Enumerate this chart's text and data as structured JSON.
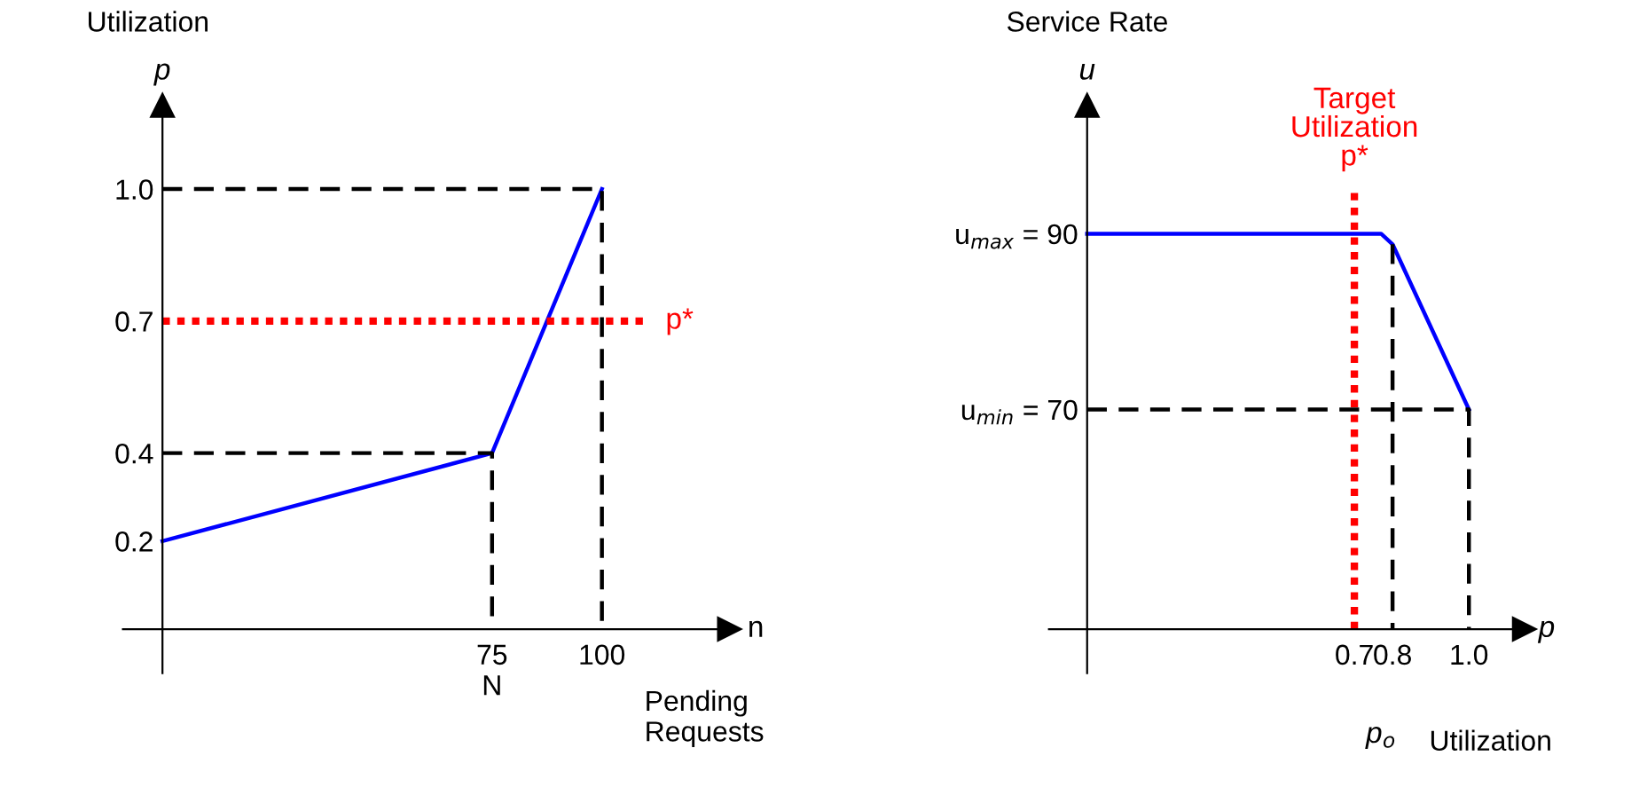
{
  "chart_data": [
    {
      "type": "line",
      "ylabel": "Utilization",
      "xlabel": "Pending\nRequests",
      "xlim": [
        -9,
        129
      ],
      "ylim": [
        -0.1,
        1.19
      ],
      "xticks": [
        {
          "value": 75,
          "label": "75\nN"
        },
        100
      ],
      "yticks": [
        0.2,
        0.4,
        0.7,
        {
          "value": 1.0,
          "label": "1.0"
        }
      ],
      "grid": false,
      "marker": "none",
      "line_style": "solid",
      "series": [
        {
          "color": "#0000ff",
          "x": [
            0,
            75,
            100
          ],
          "values": [
            0.2,
            0.4,
            1.0
          ]
        },
        {
          "color": "#000000",
          "line_style": "dashed",
          "x": [
            0,
            100,
            100
          ],
          "values": [
            1.0,
            1.0,
            0
          ]
        },
        {
          "color": "#000000",
          "line_style": "dashed",
          "x": [
            0,
            75,
            75
          ],
          "values": [
            0.4,
            0.4,
            0
          ]
        },
        {
          "color": "#ff0000",
          "line_style": "dotted",
          "x": [
            0,
            110
          ],
          "values": [
            0.7,
            0.7
          ]
        }
      ],
      "annotations": [
        "p",
        "n",
        {
          "text": "p*",
          "x": 110,
          "y": 0.7
        }
      ]
    },
    {
      "type": "line",
      "ylabel": "Service Rate",
      "xlabel": "Utilization",
      "xlim": [
        -0.1,
        1.145
      ],
      "ylim": [
        40,
        104.6
      ],
      "xticks": [
        0.7,
        0.8,
        {
          "value": 1.0,
          "label": "1.0"
        }
      ],
      "yticks": [
        {
          "value": 70,
          "label": "u$_{min}$ = 70"
        },
        {
          "value": 90,
          "label": "u$_{max}$ = 90"
        }
      ],
      "grid": false,
      "marker": "none",
      "line_style": "solid",
      "series": [
        {
          "color": "#0000ff",
          "x": [
            0,
            0.77,
            0.8,
            1.0
          ],
          "values": [
            90,
            90,
            88.8,
            70
          ]
        },
        {
          "color": "#000000",
          "line_style": "dashed",
          "x": [
            0.8,
            0.8
          ],
          "values": [
            88.8,
            45
          ]
        },
        {
          "color": "#000000",
          "line_style": "dashed",
          "x": [
            0,
            1.0,
            1.0
          ],
          "values": [
            70,
            70,
            45
          ]
        },
        {
          "color": "#ff0000",
          "line_style": "dotted",
          "x": [
            0.7,
            0.7
          ],
          "values": [
            45,
            95.4
          ]
        }
      ],
      "annotations": [
        "u",
        "p",
        {
          "text": "Target\nUtilization\np*",
          "x": 0.7,
          "y": 95.4
        },
        "p$_{o}$"
      ]
    }
  ]
}
